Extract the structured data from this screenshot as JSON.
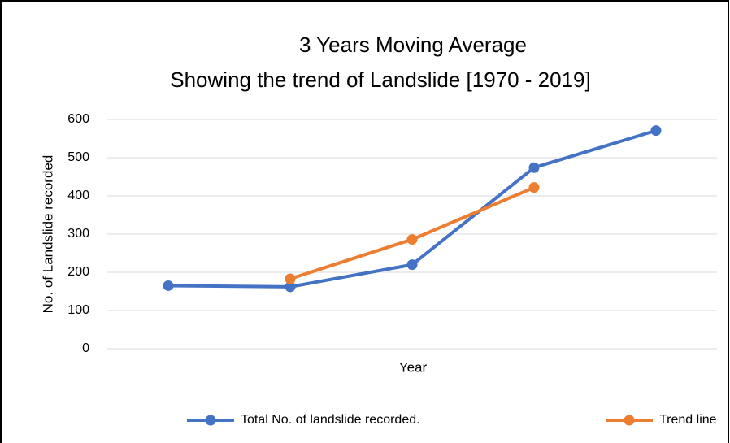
{
  "chart_data": {
    "type": "line",
    "title": "3 Years Moving Average",
    "subtitle": "Showing the trend of Landslide [1970 - 2019]",
    "y_label": "No. of Landslide recorded",
    "x_label": "Year",
    "categories": [
      null,
      null,
      null,
      null,
      null
    ],
    "series": [
      {
        "name": "Total No. of landslide recorded.",
        "color": "#4472c4",
        "values": [
          165,
          162,
          220,
          474,
          571
        ]
      },
      {
        "name": "Trend line",
        "color": "#ed7d31",
        "values": [
          null,
          183,
          286,
          422,
          null
        ]
      }
    ],
    "ylim": [
      0,
      600
    ],
    "yticks": [
      0,
      100,
      200,
      300,
      400,
      500,
      600
    ],
    "grid": true,
    "legend": "bottom"
  }
}
